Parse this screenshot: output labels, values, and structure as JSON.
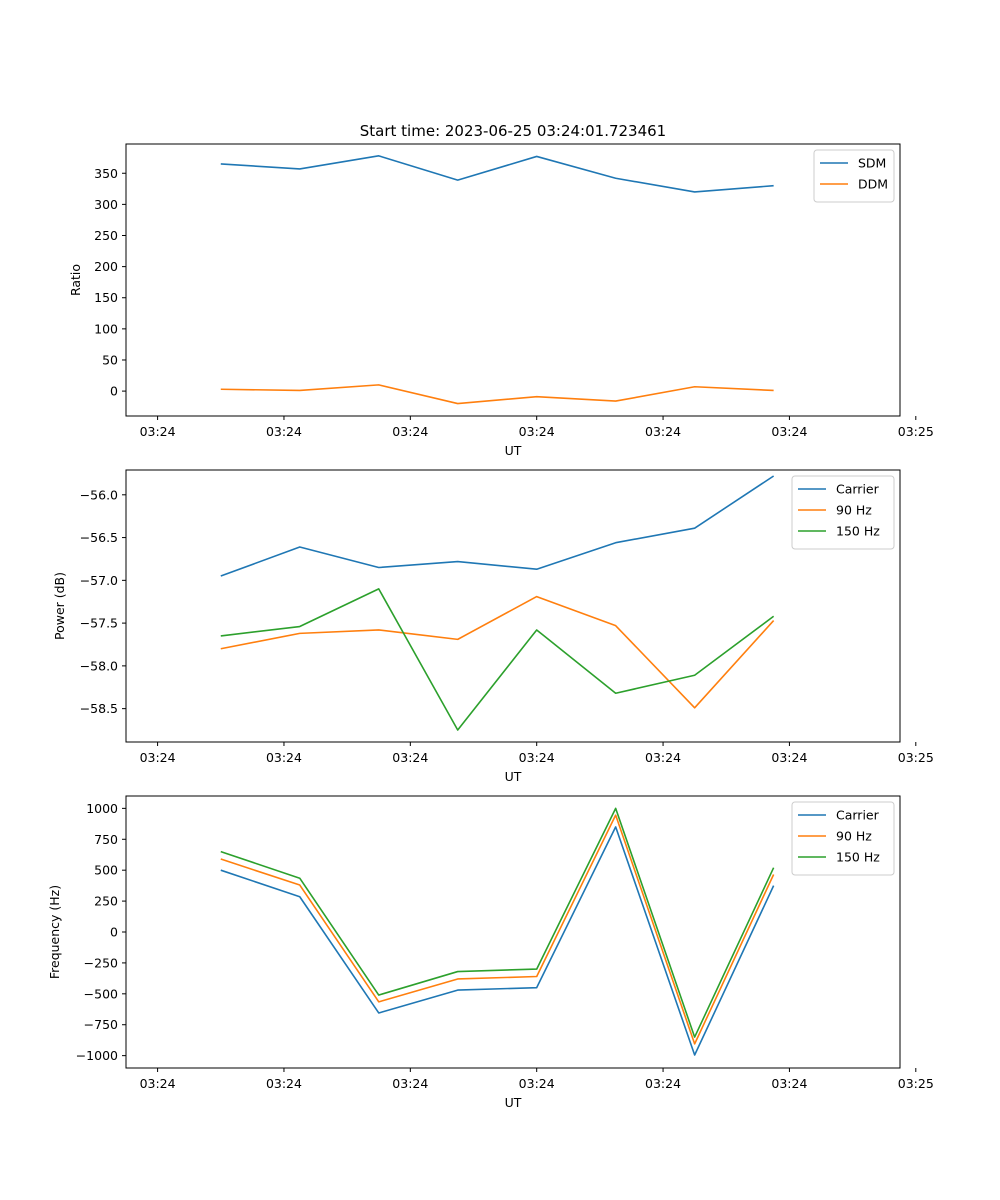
{
  "chart_data": [
    {
      "type": "line",
      "title": "Start time: 2023-06-25 03:24:01.723461",
      "xlabel": "UT",
      "ylabel": "Ratio",
      "xlim": [
        -0.4,
        9.4
      ],
      "ylim": [
        -40,
        397
      ],
      "xticks": [
        {
          "v": 0,
          "label": "03:24"
        },
        {
          "v": 1.6,
          "label": "03:24"
        },
        {
          "v": 3.2,
          "label": "03:24"
        },
        {
          "v": 4.8,
          "label": "03:24"
        },
        {
          "v": 6.4,
          "label": "03:24"
        },
        {
          "v": 8.0,
          "label": "03:24"
        },
        {
          "v": 9.6,
          "label": "03:25"
        }
      ],
      "yticks": [
        0,
        50,
        100,
        150,
        200,
        250,
        300,
        350
      ],
      "x": [
        0.8,
        1.8,
        2.8,
        3.8,
        4.8,
        5.8,
        6.8,
        7.8
      ],
      "legend_loc": "upper right",
      "series": [
        {
          "name": "SDM",
          "color": "#1f77b4",
          "values": [
            365,
            357,
            378,
            339,
            377,
            342,
            320,
            330
          ]
        },
        {
          "name": "DDM",
          "color": "#ff7f0e",
          "values": [
            3,
            1,
            10,
            -20,
            -9,
            -16,
            7,
            1
          ]
        }
      ]
    },
    {
      "type": "line",
      "title": "",
      "xlabel": "UT",
      "ylabel": "Power (dB)",
      "xlim": [
        -0.4,
        9.4
      ],
      "ylim": [
        -58.89,
        -55.71
      ],
      "xticks": [
        {
          "v": 0,
          "label": "03:24"
        },
        {
          "v": 1.6,
          "label": "03:24"
        },
        {
          "v": 3.2,
          "label": "03:24"
        },
        {
          "v": 4.8,
          "label": "03:24"
        },
        {
          "v": 6.4,
          "label": "03:24"
        },
        {
          "v": 8.0,
          "label": "03:24"
        },
        {
          "v": 9.6,
          "label": "03:25"
        }
      ],
      "yticks": [
        -58.5,
        -58.0,
        -57.5,
        -57.0,
        -56.5,
        -56.0
      ],
      "ytick_labels": [
        "−58.5",
        "−58.0",
        "−57.5",
        "−57.0",
        "−56.5",
        "−56.0"
      ],
      "x": [
        0.8,
        1.8,
        2.8,
        3.8,
        4.8,
        5.8,
        6.8,
        7.8
      ],
      "legend_loc": "upper right",
      "series": [
        {
          "name": "Carrier",
          "color": "#1f77b4",
          "values": [
            -56.95,
            -56.61,
            -56.85,
            -56.78,
            -56.87,
            -56.56,
            -56.39,
            -55.78
          ]
        },
        {
          "name": "90 Hz",
          "color": "#ff7f0e",
          "values": [
            -57.8,
            -57.62,
            -57.58,
            -57.69,
            -57.19,
            -57.53,
            -58.49,
            -57.47
          ]
        },
        {
          "name": "150 Hz",
          "color": "#2ca02c",
          "values": [
            -57.65,
            -57.54,
            -57.1,
            -58.75,
            -57.58,
            -58.32,
            -58.11,
            -57.42
          ]
        }
      ]
    },
    {
      "type": "line",
      "title": "",
      "xlabel": "UT",
      "ylabel": "Frequency (Hz)",
      "xlim": [
        -0.4,
        9.4
      ],
      "ylim": [
        -1100,
        1100
      ],
      "xticks": [
        {
          "v": 0,
          "label": "03:24"
        },
        {
          "v": 1.6,
          "label": "03:24"
        },
        {
          "v": 3.2,
          "label": "03:24"
        },
        {
          "v": 4.8,
          "label": "03:24"
        },
        {
          "v": 6.4,
          "label": "03:24"
        },
        {
          "v": 8.0,
          "label": "03:24"
        },
        {
          "v": 9.6,
          "label": "03:25"
        }
      ],
      "yticks": [
        -1000,
        -750,
        -500,
        -250,
        0,
        250,
        500,
        750,
        1000
      ],
      "ytick_labels": [
        "−1000",
        "−750",
        "−500",
        "−250",
        "0",
        "250",
        "500",
        "750",
        "1000"
      ],
      "x": [
        0.8,
        1.8,
        2.8,
        3.8,
        4.8,
        5.8,
        6.8,
        7.8
      ],
      "legend_loc": "upper right",
      "series": [
        {
          "name": "Carrier",
          "color": "#1f77b4",
          "values": [
            500,
            285,
            -655,
            -470,
            -450,
            850,
            -995,
            375
          ]
        },
        {
          "name": "90 Hz",
          "color": "#ff7f0e",
          "values": [
            590,
            380,
            -565,
            -380,
            -360,
            945,
            -905,
            465
          ]
        },
        {
          "name": "150 Hz",
          "color": "#2ca02c",
          "values": [
            650,
            435,
            -510,
            -320,
            -300,
            1000,
            -850,
            520
          ]
        }
      ]
    }
  ]
}
